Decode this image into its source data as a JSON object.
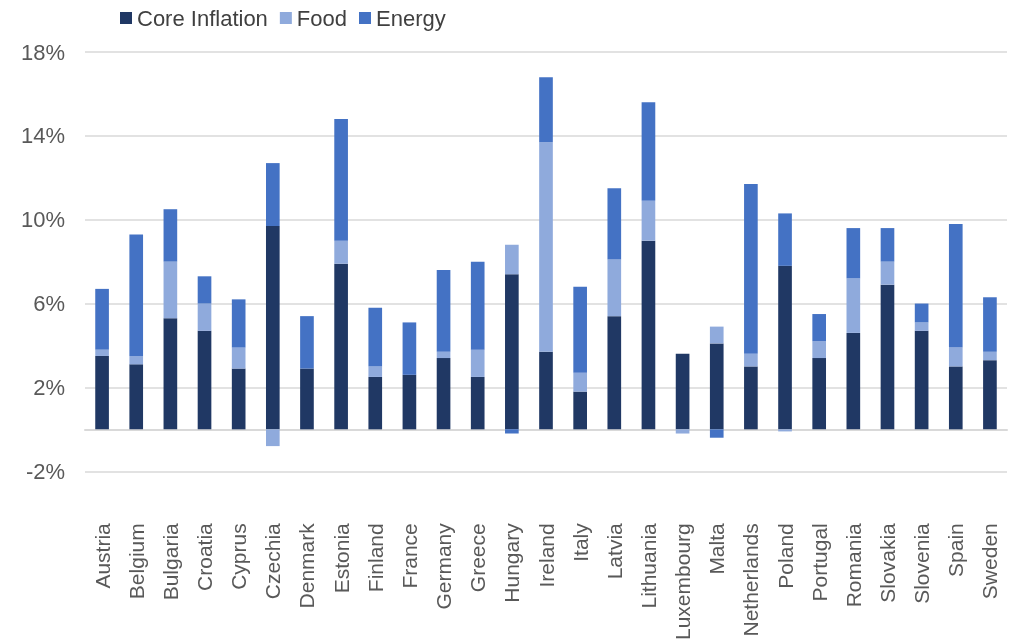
{
  "chart_data": {
    "type": "bar",
    "stacked": true,
    "categories": [
      "Austria",
      "Belgium",
      "Bulgaria",
      "Croatia",
      "Cyprus",
      "Czechia",
      "Denmark",
      "Estonia",
      "Finland",
      "France",
      "Germany",
      "Greece",
      "Hungary",
      "Ireland",
      "Italy",
      "Latvia",
      "Lithuania",
      "Luxembourg",
      "Malta",
      "Netherlands",
      "Poland",
      "Portugal",
      "Romania",
      "Slovakia",
      "Slovenia",
      "Spain",
      "Sweden"
    ],
    "series": [
      {
        "name": "Core Inflation",
        "color": "#203864",
        "values": [
          3.5,
          3.1,
          5.3,
          4.7,
          2.9,
          9.7,
          2.9,
          7.9,
          2.5,
          2.6,
          3.4,
          2.5,
          7.4,
          3.7,
          1.8,
          5.4,
          9.0,
          3.6,
          4.1,
          3.0,
          7.8,
          3.4,
          4.6,
          6.9,
          4.7,
          3.0,
          3.3
        ]
      },
      {
        "name": "Food",
        "color": "#8faadc",
        "values": [
          0.3,
          0.4,
          2.7,
          1.3,
          1.0,
          -0.8,
          0,
          1.1,
          0.5,
          0,
          0.3,
          1.3,
          1.4,
          10.0,
          0.9,
          2.7,
          1.9,
          -0.2,
          0.8,
          0.6,
          -0.1,
          0.8,
          2.6,
          1.1,
          0.4,
          0.9,
          0.4
        ]
      },
      {
        "name": "Energy",
        "color": "#4472c4",
        "values": [
          2.9,
          5.8,
          2.5,
          1.3,
          2.3,
          3.0,
          2.5,
          5.8,
          2.8,
          2.5,
          3.9,
          4.2,
          -0.2,
          3.1,
          4.1,
          3.4,
          4.7,
          0,
          -0.4,
          8.1,
          2.5,
          1.3,
          2.4,
          1.6,
          0.9,
          5.9,
          2.6
        ]
      }
    ],
    "ylim": [
      -2,
      18
    ],
    "yticks": [
      {
        "value": -2,
        "label": "-2%"
      },
      {
        "value": 2,
        "label": "2%"
      },
      {
        "value": 6,
        "label": "6%"
      },
      {
        "value": 10,
        "label": "10%"
      },
      {
        "value": 14,
        "label": "14%"
      },
      {
        "value": 18,
        "label": "18%"
      }
    ],
    "grid": "y",
    "legend": "top left"
  }
}
